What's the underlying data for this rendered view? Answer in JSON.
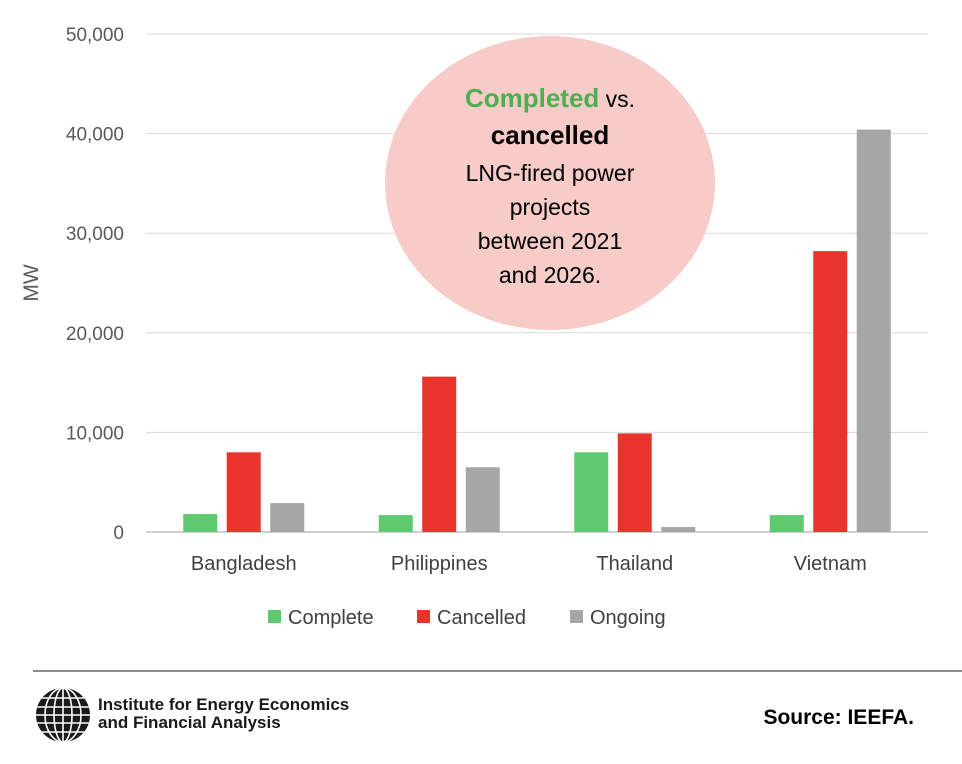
{
  "chart_data": {
    "type": "bar",
    "categories": [
      "Bangladesh",
      "Philippines",
      "Thailand",
      "Vietnam"
    ],
    "series": [
      {
        "name": "Complete",
        "color": "#5ec96e",
        "values": [
          1800,
          1700,
          8000,
          1700
        ]
      },
      {
        "name": "Cancelled",
        "color": "#e8342a",
        "values": [
          8000,
          15600,
          9900,
          28200
        ]
      },
      {
        "name": "Ongoing",
        "color": "#a6a6a6",
        "values": [
          2900,
          6500,
          500,
          40400
        ]
      }
    ],
    "yticks": [
      "0",
      "10,000",
      "20,000",
      "30,000",
      "40,000",
      "50,000"
    ],
    "ylim": [
      0,
      50000
    ],
    "ylabel": "MW",
    "xlabel": "",
    "grid": true,
    "legend_position": "bottom"
  },
  "annotation": {
    "completed_word": "Completed",
    "vs": " vs.",
    "cancelled_word": "cancelled",
    "line3": "LNG-fired power",
    "line4": "projects",
    "line5": "between 2021",
    "line6": "and 2026.",
    "bubble_color": "#f6cbc8",
    "completed_color": "#4caf50",
    "cancelled_color": "#e8342a"
  },
  "footer": {
    "org_line1": "Institute for Energy Economics",
    "org_line2": "and Financial Analysis",
    "source": "Source: IEEFA.",
    "logo_icon": "globe-icon"
  }
}
